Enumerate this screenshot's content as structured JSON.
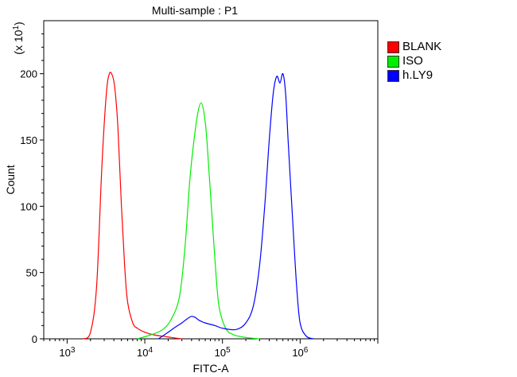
{
  "chart_data": {
    "type": "line",
    "title": "Multi-sample : P1",
    "xlabel": "FITC-A",
    "ylabel": "Count",
    "y_multiplier_label": "(x 10",
    "y_multiplier_exp": "1",
    "x_scale": "log",
    "xlim": [
      500,
      10000000
    ],
    "ylim": [
      0,
      240
    ],
    "x_ticks": [
      {
        "value": 1000,
        "base": "10",
        "exp": "3"
      },
      {
        "value": 10000,
        "base": "10",
        "exp": "4"
      },
      {
        "value": 100000,
        "base": "10",
        "exp": "5"
      },
      {
        "value": 1000000,
        "base": "10",
        "exp": "6"
      }
    ],
    "y_ticks": [
      0,
      50,
      100,
      150,
      200
    ],
    "legend_position": "right",
    "series": [
      {
        "name": "BLANK",
        "color": "#ff0000",
        "x": [
          1600,
          2000,
          2400,
          2800,
          3200,
          3500,
          3800,
          4100,
          4500,
          5000,
          5500,
          6000,
          7000,
          8000,
          10000,
          13000,
          17000,
          22000,
          30000
        ],
        "y": [
          0,
          5,
          40,
          130,
          185,
          200,
          199,
          190,
          160,
          100,
          55,
          28,
          12,
          8,
          5,
          3,
          2,
          1,
          0
        ]
      },
      {
        "name": "ISO",
        "color": "#00ee00",
        "x": [
          8000,
          12000,
          17000,
          22000,
          28000,
          33000,
          38000,
          43000,
          48000,
          53000,
          58000,
          63000,
          70000,
          80000,
          90000,
          110000,
          140000,
          200000,
          300000
        ],
        "y": [
          0,
          3,
          7,
          15,
          32,
          70,
          120,
          150,
          170,
          178,
          170,
          150,
          110,
          60,
          25,
          8,
          3,
          1,
          0
        ]
      },
      {
        "name": "h.LY9",
        "color": "#0000ff",
        "x": [
          15000,
          20000,
          25000,
          30000,
          35000,
          40000,
          45000,
          50000,
          60000,
          80000,
          100000,
          150000,
          200000,
          250000,
          300000,
          350000,
          400000,
          450000,
          500000,
          550000,
          600000,
          650000,
          700000,
          800000,
          900000,
          1000000,
          1200000,
          1500000
        ],
        "y": [
          0,
          5,
          9,
          12,
          15,
          17,
          16,
          14,
          12,
          10,
          8,
          7,
          12,
          25,
          55,
          100,
          150,
          185,
          198,
          193,
          200,
          185,
          150,
          90,
          40,
          12,
          2,
          0
        ]
      }
    ]
  }
}
